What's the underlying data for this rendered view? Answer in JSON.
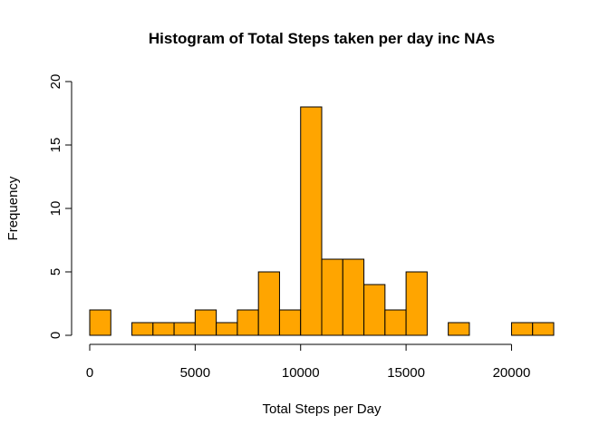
{
  "chart_data": {
    "type": "bar",
    "title": "Histogram of Total Steps taken per day inc NAs",
    "xlabel": "Total Steps per Day",
    "ylabel": "Frequency",
    "bin_width": 1000,
    "bins": [
      {
        "start": 0,
        "end": 1000,
        "count": 2
      },
      {
        "start": 1000,
        "end": 2000,
        "count": 0
      },
      {
        "start": 2000,
        "end": 3000,
        "count": 1
      },
      {
        "start": 3000,
        "end": 4000,
        "count": 1
      },
      {
        "start": 4000,
        "end": 5000,
        "count": 1
      },
      {
        "start": 5000,
        "end": 6000,
        "count": 2
      },
      {
        "start": 6000,
        "end": 7000,
        "count": 1
      },
      {
        "start": 7000,
        "end": 8000,
        "count": 2
      },
      {
        "start": 8000,
        "end": 9000,
        "count": 5
      },
      {
        "start": 9000,
        "end": 10000,
        "count": 2
      },
      {
        "start": 10000,
        "end": 11000,
        "count": 18
      },
      {
        "start": 11000,
        "end": 12000,
        "count": 6
      },
      {
        "start": 12000,
        "end": 13000,
        "count": 6
      },
      {
        "start": 13000,
        "end": 14000,
        "count": 4
      },
      {
        "start": 14000,
        "end": 15000,
        "count": 2
      },
      {
        "start": 15000,
        "end": 16000,
        "count": 5
      },
      {
        "start": 16000,
        "end": 17000,
        "count": 0
      },
      {
        "start": 17000,
        "end": 18000,
        "count": 1
      },
      {
        "start": 18000,
        "end": 19000,
        "count": 0
      },
      {
        "start": 19000,
        "end": 20000,
        "count": 0
      },
      {
        "start": 20000,
        "end": 21000,
        "count": 1
      },
      {
        "start": 21000,
        "end": 22000,
        "count": 1
      }
    ],
    "xlim": [
      0,
      22000
    ],
    "ylim": [
      0,
      20
    ],
    "x_ticks": [
      0,
      5000,
      10000,
      15000,
      20000
    ],
    "y_ticks": [
      0,
      5,
      10,
      15,
      20
    ],
    "bar_color": "#FFA500",
    "grid": false,
    "legend": "none"
  }
}
